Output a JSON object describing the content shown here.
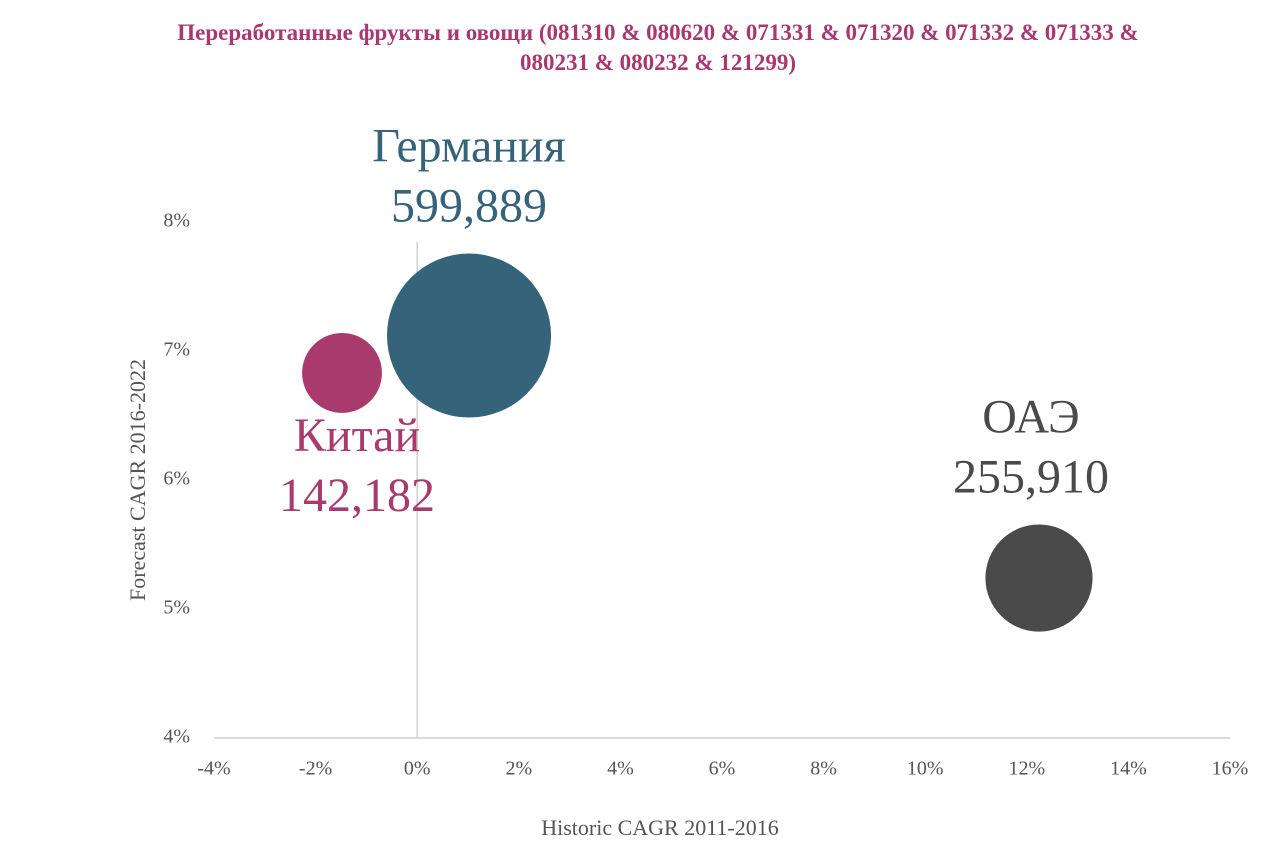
{
  "chart_data": {
    "type": "bubble",
    "title": "Переработанные фрукты и овощи (081310 & 080620 & 071331 & 071320 & 071332 & 071333 & 080231 & 080232 & 121299)",
    "x_label": "Historic CAGR 2011-2016",
    "y_label": "Forecast CAGR 2016-2022",
    "xlim": [
      -4,
      16
    ],
    "ylim": [
      4,
      8
    ],
    "xticks": [
      {
        "value": -4,
        "label": "-4%"
      },
      {
        "value": -2,
        "label": "-2%"
      },
      {
        "value": 0,
        "label": "0%"
      },
      {
        "value": 2,
        "label": "2%"
      },
      {
        "value": 4,
        "label": "4%"
      },
      {
        "value": 6,
        "label": "6%"
      },
      {
        "value": 8,
        "label": "8%"
      },
      {
        "value": 10,
        "label": "10%"
      },
      {
        "value": 12,
        "label": "12%"
      },
      {
        "value": 14,
        "label": "14%"
      },
      {
        "value": 16,
        "label": "16%"
      }
    ],
    "yticks": [
      {
        "value": 4,
        "label": "4%"
      },
      {
        "value": 5,
        "label": "5%"
      },
      {
        "value": 6,
        "label": "6%"
      },
      {
        "value": 7,
        "label": "7%"
      },
      {
        "value": 8,
        "label": "8%"
      }
    ],
    "series": [
      {
        "name": "Германия",
        "color": "#35637a",
        "x": [
          1.02
        ],
        "y": [
          7.12
        ],
        "sizes": [
          599889
        ],
        "value_labels": [
          "599,889"
        ]
      },
      {
        "name": "Китай",
        "color": "#a83a6e",
        "x": [
          -1.48
        ],
        "y": [
          6.83
        ],
        "sizes": [
          142182
        ],
        "value_labels": [
          "142,182"
        ]
      },
      {
        "name": "ОАЭ",
        "color": "#4a4a4a",
        "x": [
          12.24
        ],
        "y": [
          5.24
        ],
        "sizes": [
          255910
        ],
        "value_labels": [
          "255,910"
        ]
      }
    ]
  }
}
